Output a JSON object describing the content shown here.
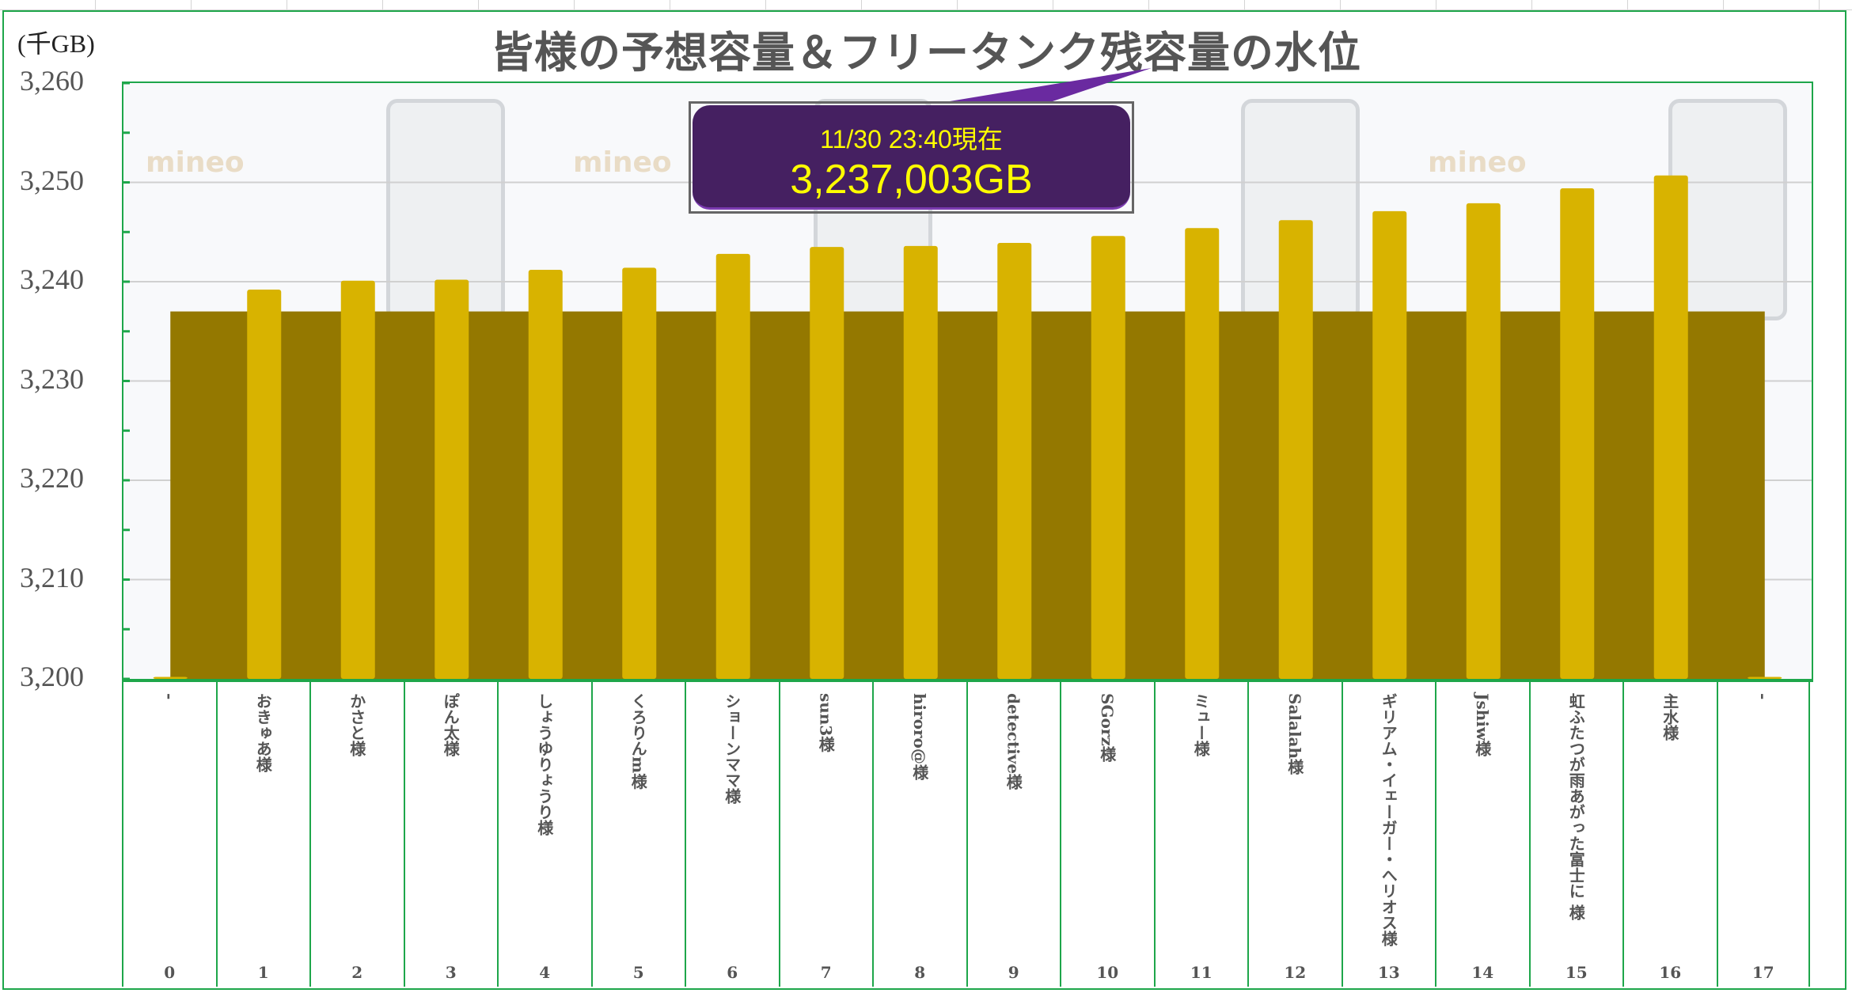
{
  "logo": "mineo",
  "chart_data": {
    "type": "bar",
    "title": "皆様の予想容量＆フリータンク残容量の水位",
    "ylabel": "(千GB)",
    "ylim": [
      3200,
      3260
    ],
    "yticks": [
      "3,200",
      "3,210",
      "3,220",
      "3,230",
      "3,240",
      "3,250",
      "3,260"
    ],
    "ytick_values": [
      3200,
      3210,
      3220,
      3230,
      3240,
      3250,
      3260
    ],
    "categories": [
      "-",
      "おきゅあ様",
      "かさと様",
      "ぽん太様",
      "しょうゆりょうり様",
      "くろりんm様",
      "ショーンママ様",
      "sun3様",
      "hiroro@様",
      "detective様",
      "SGorz様",
      "ミュー様",
      "Salalah様",
      "ギリアム・イェーガー・へリオス様",
      "Jshiw様",
      "虹ふたつが雨あがった富士に 様",
      "主水様",
      "-"
    ],
    "category_numbers": [
      "0",
      "1",
      "2",
      "3",
      "4",
      "5",
      "6",
      "7",
      "8",
      "9",
      "10",
      "11",
      "12",
      "13",
      "14",
      "15",
      "16",
      "17"
    ],
    "series": [
      {
        "values": [
          3200.2,
          3239.2,
          3240.1,
          3240.2,
          3241.2,
          3241.4,
          3242.8,
          3243.5,
          3243.6,
          3243.9,
          3244.6,
          3245.4,
          3246.2,
          3247.1,
          3247.9,
          3249.4,
          3250.7,
          3200.2
        ],
        "color": "#d8b300"
      }
    ],
    "free_tank_level": 3237.003,
    "free_tank_color": "#947800",
    "grid": true,
    "annotation": {
      "timestamp": "11/30 23:40現在",
      "value": "3,237,003GB",
      "background": "#452061",
      "text_color": "#ffff00"
    }
  }
}
